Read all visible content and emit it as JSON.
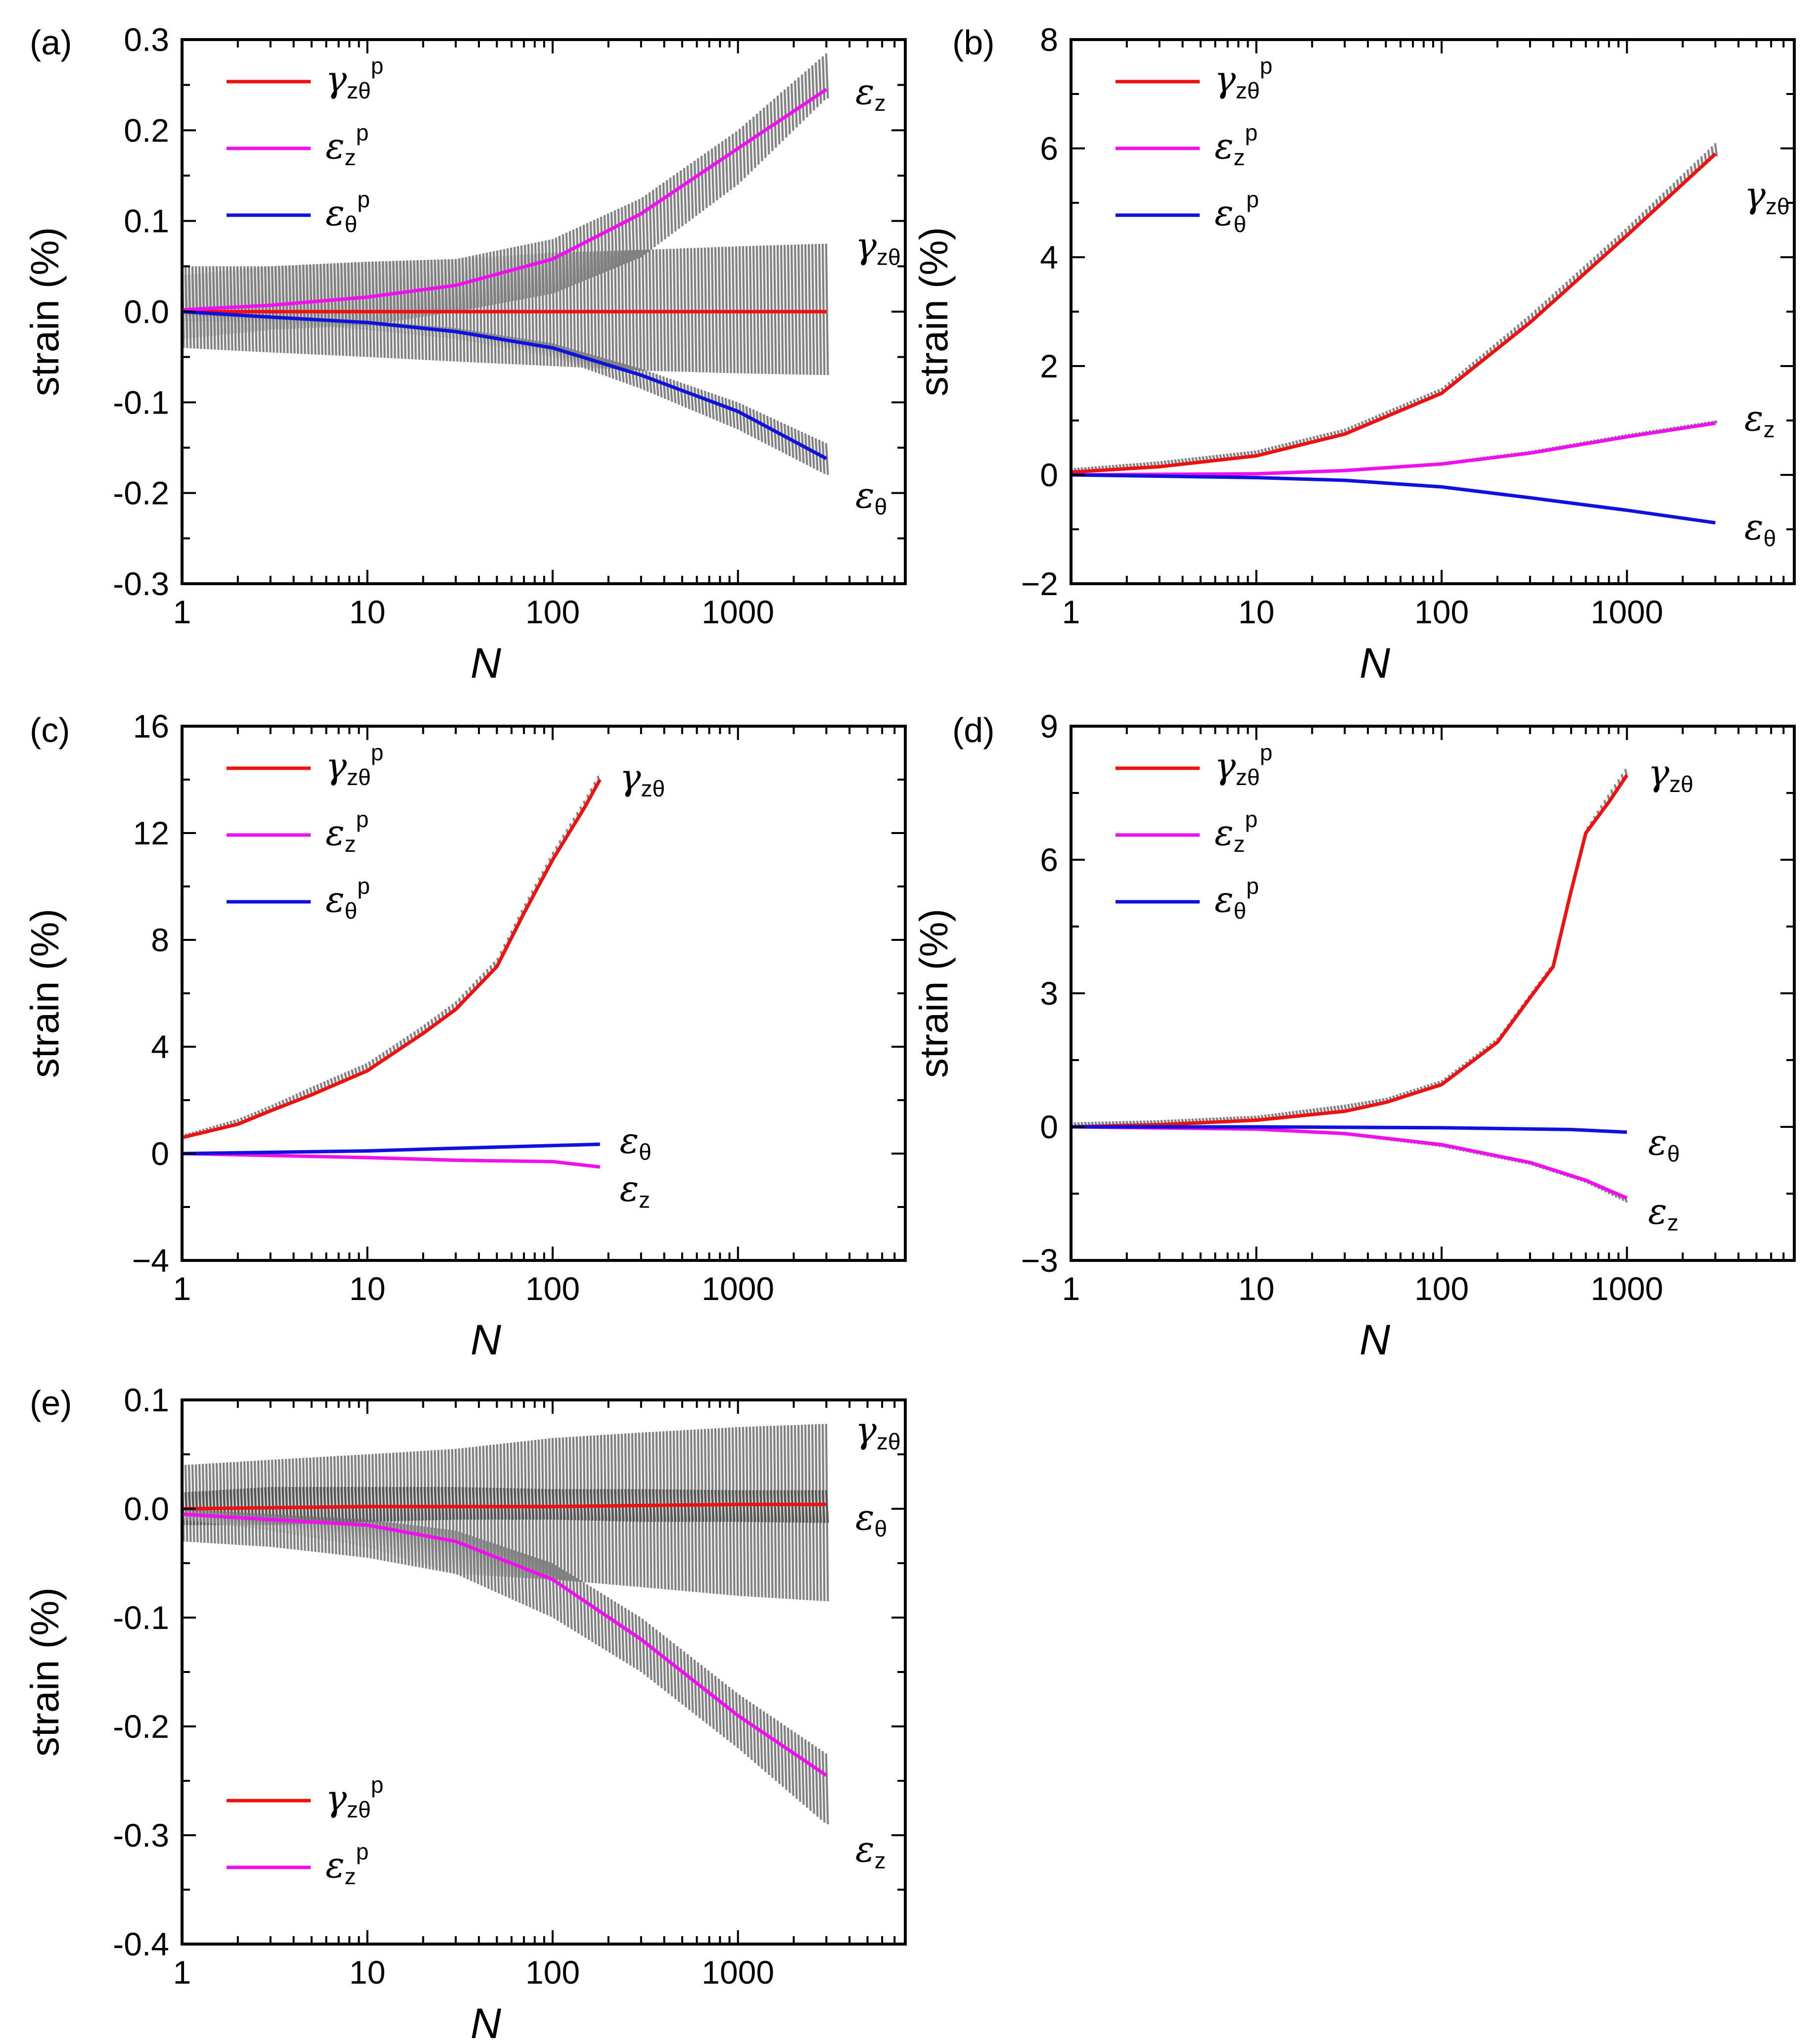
{
  "chart_data": [
    {
      "panel": "(a)",
      "type": "line",
      "xscale": "log",
      "xlim": [
        1,
        8000
      ],
      "ylim": [
        -0.3,
        0.3
      ],
      "xticks": [
        "1",
        "10",
        "100",
        "1000"
      ],
      "yticks": [
        "-0.3",
        "-0.2",
        "-0.1",
        "0.0",
        "0.1",
        "0.2",
        "0.3"
      ],
      "xlabel": "N",
      "ylabel": "strain (%)",
      "legend": [
        {
          "sym": "γ",
          "sub": "zθ",
          "sup": "p",
          "color": "#ee1111"
        },
        {
          "sym": "ε",
          "sub": "z",
          "sup": "p",
          "color": "#ee11ee"
        },
        {
          "sym": "ε",
          "sub": "θ",
          "sup": "p",
          "color": "#1111dd"
        }
      ],
      "legend_position": "top-left",
      "series": [
        {
          "name": "γzθp",
          "color": "#ee1111",
          "x": [
            1,
            10,
            100,
            1000,
            3000
          ],
          "y": [
            0.0,
            0.0,
            0.0,
            0.0,
            0.0
          ]
        },
        {
          "name": "εzp",
          "color": "#ee11ee",
          "x": [
            1,
            3,
            10,
            30,
            100,
            300,
            1000,
            3000
          ],
          "y": [
            0.002,
            0.007,
            0.016,
            0.029,
            0.058,
            0.108,
            0.18,
            0.245
          ]
        },
        {
          "name": "εθp",
          "color": "#1111dd",
          "x": [
            1,
            3,
            10,
            30,
            100,
            300,
            1000,
            3000
          ],
          "y": [
            0.0,
            -0.006,
            -0.012,
            -0.022,
            -0.04,
            -0.07,
            -0.11,
            -0.162
          ]
        }
      ],
      "envelopes": [
        {
          "name": "εz",
          "color": "#808080",
          "x": [
            1,
            3,
            10,
            30,
            100,
            300,
            1000,
            3000
          ],
          "upper": [
            0.05,
            0.05,
            0.055,
            0.058,
            0.08,
            0.125,
            0.2,
            0.285
          ],
          "lower": [
            -0.03,
            -0.02,
            -0.015,
            0.0,
            0.02,
            0.06,
            0.14,
            0.235
          ]
        },
        {
          "name": "γzθ",
          "color": "#808080",
          "x": [
            1,
            3,
            10,
            30,
            100,
            300,
            1000,
            3000
          ],
          "upper": [
            0.04,
            0.05,
            0.055,
            0.058,
            0.065,
            0.068,
            0.072,
            0.075
          ],
          "lower": [
            -0.04,
            -0.045,
            -0.05,
            -0.055,
            -0.06,
            -0.065,
            -0.068,
            -0.07
          ]
        },
        {
          "name": "εθ",
          "color": "#808080",
          "x": [
            1,
            3,
            10,
            30,
            100,
            300,
            1000,
            3000
          ],
          "upper": [
            0.0,
            -0.005,
            -0.01,
            -0.018,
            -0.035,
            -0.063,
            -0.1,
            -0.145
          ],
          "lower": [
            -0.01,
            -0.012,
            -0.02,
            -0.03,
            -0.05,
            -0.085,
            -0.13,
            -0.18
          ]
        }
      ],
      "labels": [
        {
          "sym": "ε",
          "sub": "z",
          "x": 4300,
          "y": 0.24
        },
        {
          "sym": "γ",
          "sub": "zθ",
          "x": 4300,
          "y": 0.07
        },
        {
          "sym": "ε",
          "sub": "θ",
          "x": 4300,
          "y": -0.205
        }
      ]
    },
    {
      "panel": "(b)",
      "type": "line",
      "xscale": "log",
      "xlim": [
        1,
        8000
      ],
      "ylim": [
        -2,
        8
      ],
      "xticks": [
        "1",
        "10",
        "100",
        "1000"
      ],
      "yticks": [
        "−2",
        "0",
        "2",
        "4",
        "6",
        "8"
      ],
      "xlabel": "N",
      "ylabel": "strain (%)",
      "legend": [
        {
          "sym": "γ",
          "sub": "zθ",
          "sup": "p",
          "color": "#ee1111"
        },
        {
          "sym": "ε",
          "sub": "z",
          "sup": "p",
          "color": "#ee11ee"
        },
        {
          "sym": "ε",
          "sub": "θ",
          "sup": "p",
          "color": "#1111dd"
        }
      ],
      "legend_position": "top-left",
      "series": [
        {
          "name": "γzθp",
          "color": "#ee1111",
          "x": [
            1,
            3,
            10,
            30,
            100,
            300,
            1000,
            3000
          ],
          "y": [
            0.05,
            0.15,
            0.35,
            0.75,
            1.5,
            2.8,
            4.4,
            5.9
          ]
        },
        {
          "name": "εzp",
          "color": "#ee11ee",
          "x": [
            1,
            10,
            30,
            100,
            300,
            1000,
            3000
          ],
          "y": [
            0.0,
            0.02,
            0.08,
            0.2,
            0.4,
            0.7,
            0.95
          ]
        },
        {
          "name": "εθp",
          "color": "#1111dd",
          "x": [
            1,
            10,
            30,
            100,
            300,
            1000,
            3000
          ],
          "y": [
            0.0,
            -0.05,
            -0.1,
            -0.22,
            -0.42,
            -0.65,
            -0.88
          ]
        }
      ],
      "envelopes": [
        {
          "name": "γzθ",
          "color": "#808080",
          "x": [
            1,
            3,
            10,
            30,
            100,
            300,
            1000,
            3000
          ],
          "upper": [
            0.12,
            0.25,
            0.45,
            0.85,
            1.6,
            2.95,
            4.55,
            6.1
          ],
          "lower": [
            0.05,
            0.15,
            0.35,
            0.75,
            1.5,
            2.8,
            4.4,
            5.85
          ]
        },
        {
          "name": "εz",
          "color": "#808080",
          "x": [
            1,
            10,
            30,
            100,
            300,
            1000,
            3000
          ],
          "upper": [
            0.0,
            0.04,
            0.1,
            0.23,
            0.44,
            0.75,
            1.0
          ],
          "lower": [
            0.0,
            0.02,
            0.08,
            0.2,
            0.4,
            0.7,
            0.95
          ]
        }
      ],
      "labels": [
        {
          "sym": "γ",
          "sub": "zθ",
          "x": 4300,
          "y": 5.1
        },
        {
          "sym": "ε",
          "sub": "z",
          "x": 4300,
          "y": 1.0
        },
        {
          "sym": "ε",
          "sub": "θ",
          "x": 4300,
          "y": -1.0
        }
      ]
    },
    {
      "panel": "(c)",
      "type": "line",
      "xscale": "log",
      "xlim": [
        1,
        8000
      ],
      "ylim": [
        -4,
        16
      ],
      "xticks": [
        "1",
        "10",
        "100",
        "1000"
      ],
      "yticks": [
        "−4",
        "0",
        "4",
        "8",
        "12",
        "16"
      ],
      "xlabel": "N",
      "ylabel": "strain (%)",
      "legend": [
        {
          "sym": "γ",
          "sub": "zθ",
          "sup": "p",
          "color": "#ee1111"
        },
        {
          "sym": "ε",
          "sub": "z",
          "sup": "p",
          "color": "#ee11ee"
        },
        {
          "sym": "ε",
          "sub": "θ",
          "sup": "p",
          "color": "#1111dd"
        }
      ],
      "legend_position": "top-left",
      "series": [
        {
          "name": "γzθp",
          "color": "#ee1111",
          "x": [
            1,
            2,
            3,
            5,
            10,
            20,
            30,
            50,
            70,
            100,
            150,
            180
          ],
          "y": [
            0.6,
            1.1,
            1.6,
            2.2,
            3.1,
            4.5,
            5.4,
            7.0,
            9.0,
            11.0,
            13.0,
            14.0
          ]
        },
        {
          "name": "εzp",
          "color": "#ee11ee",
          "x": [
            1,
            10,
            30,
            100,
            180
          ],
          "y": [
            0.0,
            -0.15,
            -0.25,
            -0.3,
            -0.5
          ]
        },
        {
          "name": "εθp",
          "color": "#1111dd",
          "x": [
            1,
            10,
            30,
            100,
            180
          ],
          "y": [
            0.0,
            0.1,
            0.2,
            0.3,
            0.35
          ]
        }
      ],
      "envelopes": [
        {
          "name": "γzθ",
          "color": "#808080",
          "x": [
            1,
            2,
            3,
            5,
            10,
            20,
            30,
            50,
            70,
            100,
            150,
            180
          ],
          "upper": [
            0.7,
            1.3,
            1.8,
            2.5,
            3.4,
            4.8,
            5.7,
            7.3,
            9.3,
            11.3,
            13.3,
            14.3
          ],
          "lower": [
            0.6,
            1.1,
            1.6,
            2.2,
            3.1,
            4.5,
            5.4,
            7.0,
            9.0,
            11.0,
            13.0,
            14.0
          ]
        }
      ],
      "labels": [
        {
          "sym": "γ",
          "sub": "zθ",
          "x": 230,
          "y": 14.0
        },
        {
          "sym": "ε",
          "sub": "θ",
          "x": 230,
          "y": 0.4
        },
        {
          "sym": "ε",
          "sub": "z",
          "x": 230,
          "y": -1.4
        }
      ]
    },
    {
      "panel": "(d)",
      "type": "line",
      "xscale": "log",
      "xlim": [
        1,
        8000
      ],
      "ylim": [
        -3,
        9
      ],
      "xticks": [
        "1",
        "10",
        "100",
        "1000"
      ],
      "yticks": [
        "−3",
        "0",
        "3",
        "6",
        "9"
      ],
      "xlabel": "N",
      "ylabel": "strain (%)",
      "legend": [
        {
          "sym": "γ",
          "sub": "zθ",
          "sup": "p",
          "color": "#ee1111"
        },
        {
          "sym": "ε",
          "sub": "z",
          "sup": "p",
          "color": "#ee11ee"
        },
        {
          "sym": "ε",
          "sub": "θ",
          "sup": "p",
          "color": "#1111dd"
        }
      ],
      "legend_position": "top-left",
      "series": [
        {
          "name": "γzθp",
          "color": "#ee1111",
          "x": [
            1,
            3,
            10,
            30,
            50,
            100,
            200,
            300,
            400,
            450,
            500,
            600,
            800,
            1000
          ],
          "y": [
            0.0,
            0.05,
            0.15,
            0.35,
            0.55,
            0.95,
            1.9,
            2.9,
            3.6,
            4.5,
            5.3,
            6.6,
            7.3,
            7.9
          ]
        },
        {
          "name": "εzp",
          "color": "#ee11ee",
          "x": [
            1,
            10,
            30,
            100,
            300,
            600,
            1000
          ],
          "y": [
            0.0,
            -0.05,
            -0.15,
            -0.4,
            -0.8,
            -1.2,
            -1.6
          ]
        },
        {
          "name": "εθp",
          "color": "#1111dd",
          "x": [
            1,
            10,
            100,
            500,
            1000
          ],
          "y": [
            0.0,
            0.0,
            -0.02,
            -0.06,
            -0.12
          ]
        }
      ],
      "envelopes": [
        {
          "name": "γzθ",
          "color": "#808080",
          "x": [
            1,
            3,
            10,
            30,
            50,
            100,
            200,
            300,
            400,
            450,
            500,
            600,
            800,
            1000
          ],
          "upper": [
            0.1,
            0.15,
            0.25,
            0.5,
            0.65,
            1.05,
            2.0,
            3.0,
            3.7,
            4.6,
            5.4,
            6.7,
            7.5,
            8.1
          ],
          "lower": [
            0.0,
            0.05,
            0.15,
            0.35,
            0.55,
            0.95,
            1.9,
            2.9,
            3.6,
            4.5,
            5.3,
            6.6,
            7.3,
            7.9
          ]
        },
        {
          "name": "εz",
          "color": "#808080",
          "x": [
            1,
            10,
            30,
            100,
            300,
            600,
            1000
          ],
          "upper": [
            0.0,
            -0.05,
            -0.15,
            -0.4,
            -0.8,
            -1.2,
            -1.6
          ],
          "lower": [
            0.0,
            -0.07,
            -0.18,
            -0.45,
            -0.85,
            -1.25,
            -1.7
          ]
        }
      ],
      "labels": [
        {
          "sym": "γ",
          "sub": "zθ",
          "x": 1300,
          "y": 7.9
        },
        {
          "sym": "ε",
          "sub": "θ",
          "x": 1300,
          "y": -0.4
        },
        {
          "sym": "ε",
          "sub": "z",
          "x": 1300,
          "y": -1.95
        }
      ]
    },
    {
      "panel": "(e)",
      "type": "line",
      "xscale": "log",
      "xlim": [
        1,
        8000
      ],
      "ylim": [
        -0.4,
        0.1
      ],
      "xticks": [
        "1",
        "10",
        "100",
        "1000"
      ],
      "yticks": [
        "-0.4",
        "-0.3",
        "-0.2",
        "-0.1",
        "0.0",
        "0.1"
      ],
      "xlabel": "N",
      "ylabel": "strain (%)",
      "legend": [
        {
          "sym": "γ",
          "sub": "zθ",
          "sup": "p",
          "color": "#ee1111"
        },
        {
          "sym": "ε",
          "sub": "z",
          "sup": "p",
          "color": "#ee11ee"
        }
      ],
      "legend_position": "bottom-left",
      "series": [
        {
          "name": "γzθp",
          "color": "#ee1111",
          "x": [
            1,
            10,
            100,
            1000,
            3000
          ],
          "y": [
            0.0,
            0.002,
            0.002,
            0.004,
            0.004
          ]
        },
        {
          "name": "εzp",
          "color": "#ee11ee",
          "x": [
            1,
            3,
            10,
            30,
            100,
            300,
            1000,
            3000
          ],
          "y": [
            -0.005,
            -0.01,
            -0.015,
            -0.03,
            -0.065,
            -0.12,
            -0.19,
            -0.245
          ]
        }
      ],
      "envelopes": [
        {
          "name": "γzθ",
          "color": "#808080",
          "x": [
            1,
            3,
            10,
            30,
            100,
            300,
            1000,
            3000
          ],
          "upper": [
            0.04,
            0.045,
            0.05,
            0.055,
            0.065,
            0.07,
            0.075,
            0.078
          ],
          "lower": [
            -0.03,
            -0.035,
            -0.045,
            -0.06,
            -0.065,
            -0.072,
            -0.08,
            -0.085
          ]
        },
        {
          "name": "εθ",
          "color": "#555555",
          "x": [
            1,
            3,
            10,
            30,
            100,
            300,
            1000,
            3000
          ],
          "upper": [
            0.015,
            0.02,
            0.02,
            0.02,
            0.018,
            0.018,
            0.017,
            0.017
          ],
          "lower": [
            -0.015,
            -0.015,
            -0.012,
            -0.01,
            -0.01,
            -0.012,
            -0.012,
            -0.013
          ]
        },
        {
          "name": "εz",
          "color": "#808080",
          "x": [
            1,
            3,
            10,
            30,
            100,
            300,
            1000,
            3000
          ],
          "upper": [
            0.0,
            -0.005,
            -0.01,
            -0.02,
            -0.05,
            -0.1,
            -0.17,
            -0.225
          ],
          "lower": [
            -0.01,
            -0.02,
            -0.035,
            -0.06,
            -0.1,
            -0.15,
            -0.22,
            -0.29
          ]
        }
      ],
      "labels": [
        {
          "sym": "γ",
          "sub": "zθ",
          "x": 4300,
          "y": 0.07
        },
        {
          "sym": "ε",
          "sub": "θ",
          "x": 4300,
          "y": -0.01
        },
        {
          "sym": "ε",
          "sub": "z",
          "x": 4300,
          "y": -0.315
        }
      ]
    }
  ]
}
